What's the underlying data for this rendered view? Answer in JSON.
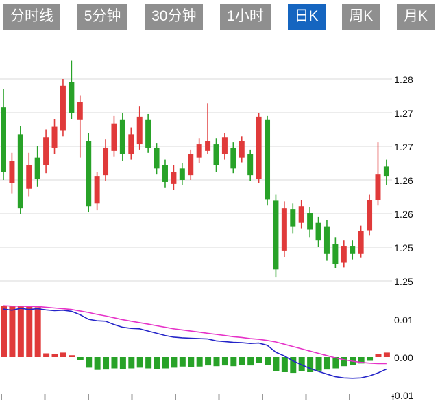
{
  "tabs": {
    "items": [
      {
        "label": "分时线",
        "active": false
      },
      {
        "label": "5分钟",
        "active": false
      },
      {
        "label": "30分钟",
        "active": false
      },
      {
        "label": "1小时",
        "active": false
      },
      {
        "label": "日K",
        "active": true
      },
      {
        "label": "周K",
        "active": false
      },
      {
        "label": "月K",
        "active": false
      }
    ]
  },
  "colors": {
    "up": "#e03a3a",
    "down": "#28a228",
    "dif_line": "#2424c8",
    "dea_line": "#e632c8",
    "tab_bg": "#8f8f8f",
    "active_tab_bg": "#1565c0",
    "grid": "#d8d8d8",
    "tick": "#999999",
    "axis_text": "#111111"
  },
  "price_axis": {
    "labels": [
      "1.28",
      "1.27",
      "1.27",
      "1.26",
      "1.26",
      "1.25",
      "1.25"
    ]
  },
  "macd_axis": {
    "labels": [
      "0.01",
      "0.00",
      "-0.01"
    ]
  },
  "chart_data": {
    "type": "candlestick+macd",
    "main": {
      "type": "candlestick",
      "up_color_convention": "red-up-green-down",
      "gridline_values": [
        1.28,
        1.275,
        1.27,
        1.265,
        1.26,
        1.255,
        1.25
      ],
      "ylim": [
        1.248,
        1.2856
      ],
      "x_ticks_unlabeled": 10,
      "ohlc": [
        [
          1.2758,
          1.2785,
          1.265,
          1.2662
        ],
        [
          1.2645,
          1.269,
          1.263,
          1.2678
        ],
        [
          1.2718,
          1.273,
          1.26,
          1.2608
        ],
        [
          1.2637,
          1.269,
          1.2625,
          1.2672
        ],
        [
          1.2683,
          1.27,
          1.264,
          1.2652
        ],
        [
          1.2672,
          1.2725,
          1.266,
          1.2713
        ],
        [
          1.2698,
          1.274,
          1.2688,
          1.2729
        ],
        [
          1.2723,
          1.28,
          1.2715,
          1.279
        ],
        [
          1.2795,
          1.2827,
          1.274,
          1.2749
        ],
        [
          1.2739,
          1.2775,
          1.2683,
          1.2766
        ],
        [
          1.2708,
          1.272,
          1.2602,
          1.2611
        ],
        [
          1.2615,
          1.2662,
          1.2605,
          1.2655
        ],
        [
          1.2657,
          1.271,
          1.2648,
          1.2698
        ],
        [
          1.2693,
          1.2745,
          1.2685,
          1.2734
        ],
        [
          1.2739,
          1.275,
          1.2678,
          1.2688
        ],
        [
          1.2688,
          1.2728,
          1.268,
          1.2718
        ],
        [
          1.2703,
          1.2759,
          1.2695,
          1.2744
        ],
        [
          1.2739,
          1.2748,
          1.269,
          1.2698
        ],
        [
          1.2698,
          1.2705,
          1.2658,
          1.2667
        ],
        [
          1.2672,
          1.268,
          1.2638,
          1.2647
        ],
        [
          1.2644,
          1.2672,
          1.2635,
          1.2662
        ],
        [
          1.2667,
          1.2675,
          1.2642,
          1.265
        ],
        [
          1.2657,
          1.2695,
          1.265,
          1.2688
        ],
        [
          1.2683,
          1.2712,
          1.2675,
          1.2703
        ],
        [
          1.2693,
          1.2764,
          1.2688,
          1.2708
        ],
        [
          1.2703,
          1.2712,
          1.2662,
          1.2672
        ],
        [
          1.2688,
          1.272,
          1.268,
          1.2713
        ],
        [
          1.2698,
          1.2706,
          1.266,
          1.2667
        ],
        [
          1.2683,
          1.2715,
          1.2676,
          1.2708
        ],
        [
          1.2688,
          1.2695,
          1.2648,
          1.2657
        ],
        [
          1.2652,
          1.275,
          1.2645,
          1.2744
        ],
        [
          1.2739,
          1.2745,
          1.2612,
          1.2621
        ],
        [
          1.2619,
          1.2628,
          1.2505,
          1.2517
        ],
        [
          1.2545,
          1.2618,
          1.2535,
          1.2608
        ],
        [
          1.2606,
          1.2615,
          1.257,
          1.2581
        ],
        [
          1.2586,
          1.262,
          1.2578,
          1.2611
        ],
        [
          1.2601,
          1.261,
          1.2565,
          1.2576
        ],
        [
          1.2586,
          1.2595,
          1.255,
          1.256
        ],
        [
          1.2581,
          1.259,
          1.253,
          1.254
        ],
        [
          1.2555,
          1.2565,
          1.2519,
          1.2525
        ],
        [
          1.2527,
          1.256,
          1.252,
          1.2552
        ],
        [
          1.2552,
          1.256,
          1.2532,
          1.254
        ],
        [
          1.254,
          1.2582,
          1.2534,
          1.2574
        ],
        [
          1.2575,
          1.2628,
          1.2568,
          1.262
        ],
        [
          1.262,
          1.2706,
          1.2612,
          1.2658
        ],
        [
          1.267,
          1.268,
          1.2642,
          1.2655
        ]
      ]
    },
    "indicator": {
      "type": "bar+line",
      "name": "MACD",
      "gridline_values": [
        0.01,
        0.0,
        -0.01
      ],
      "ylim": [
        -0.012,
        0.0145
      ],
      "bars": [
        0.0135,
        0.0135,
        0.0134,
        0.0133,
        0.0132,
        0.001,
        0.0008,
        0.0012,
        0.0005,
        -0.0008,
        -0.0028,
        -0.0034,
        -0.0033,
        -0.003,
        -0.0032,
        -0.003,
        -0.0028,
        -0.003,
        -0.0032,
        -0.003,
        -0.0028,
        -0.0025,
        -0.0027,
        -0.0025,
        -0.0022,
        -0.0024,
        -0.0022,
        -0.0024,
        -0.002,
        -0.0022,
        -0.0015,
        -0.002,
        -0.0038,
        -0.004,
        -0.0042,
        -0.0038,
        -0.004,
        -0.0036,
        -0.0033,
        -0.003,
        -0.0024,
        -0.002,
        -0.0017,
        -0.001,
        0.0008,
        0.0012
      ],
      "series": [
        {
          "name": "DIF",
          "values": [
            0.0127,
            0.0124,
            0.0129,
            0.0126,
            0.0128,
            0.0125,
            0.0123,
            0.0124,
            0.0121,
            0.0112,
            0.01,
            0.0096,
            0.0095,
            0.0086,
            0.0079,
            0.0076,
            0.0075,
            0.0069,
            0.0063,
            0.0057,
            0.0053,
            0.0051,
            0.005,
            0.0049,
            0.0048,
            0.0043,
            0.0041,
            0.0039,
            0.0038,
            0.0036,
            0.0037,
            0.0031,
            0.0013,
            0.0003,
            -0.001,
            -0.002,
            -0.003,
            -0.0038,
            -0.0045,
            -0.0052,
            -0.0055,
            -0.0056,
            -0.0055,
            -0.005,
            -0.0042,
            -0.0032
          ]
        },
        {
          "name": "DEA",
          "values": [
            0.0136,
            0.0135,
            0.0135,
            0.0134,
            0.0134,
            0.0132,
            0.013,
            0.0128,
            0.0126,
            0.0122,
            0.0118,
            0.0113,
            0.0109,
            0.0104,
            0.0099,
            0.0095,
            0.0091,
            0.0087,
            0.0083,
            0.0079,
            0.0075,
            0.0072,
            0.0069,
            0.0066,
            0.0063,
            0.006,
            0.0057,
            0.0054,
            0.0052,
            0.0049,
            0.0047,
            0.0044,
            0.004,
            0.0034,
            0.0028,
            0.0022,
            0.0016,
            0.001,
            0.0004,
            -0.0002,
            -0.0007,
            -0.0011,
            -0.0014,
            -0.0016,
            -0.0017,
            -0.0017
          ]
        }
      ]
    }
  }
}
